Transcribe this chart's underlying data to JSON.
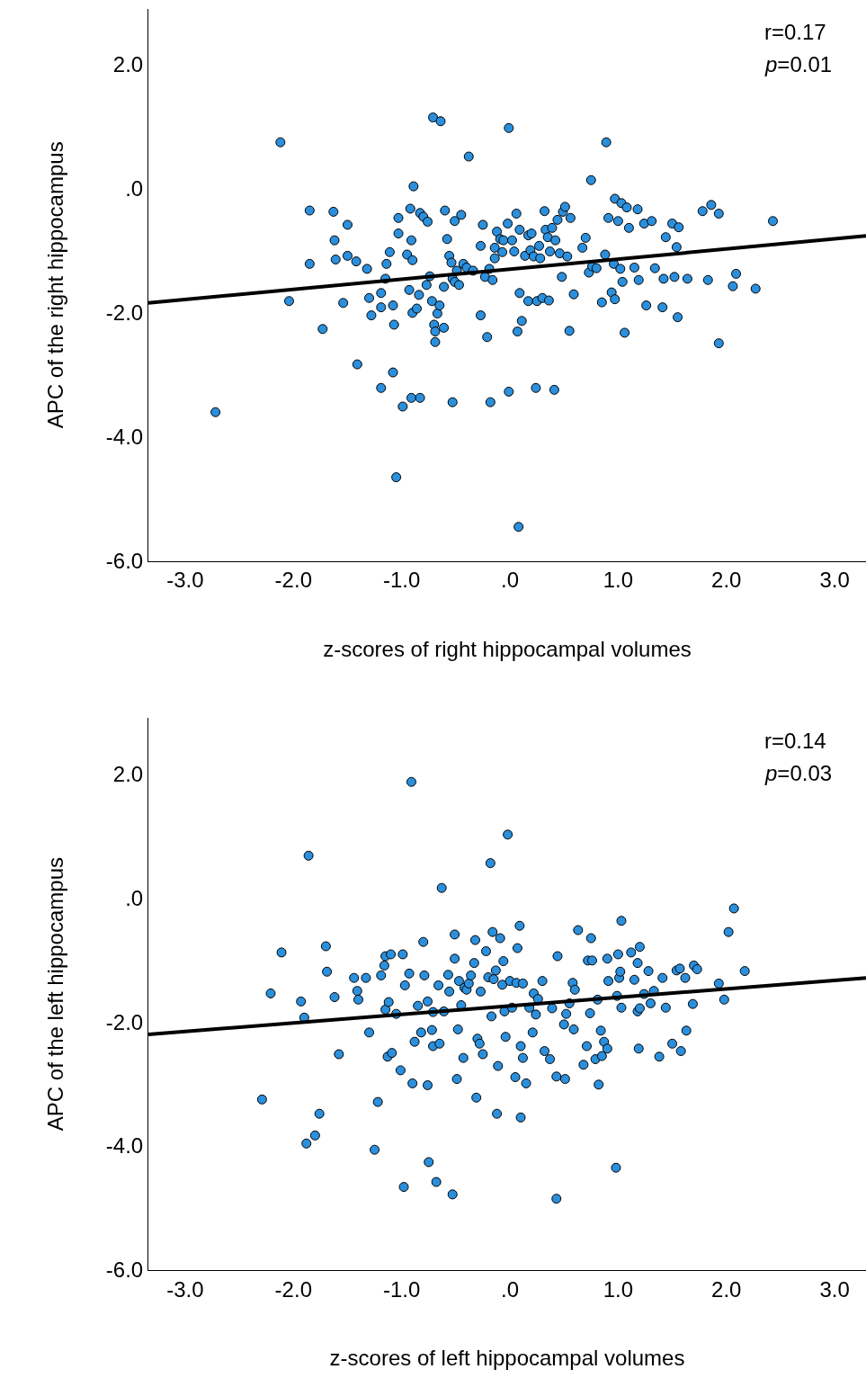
{
  "chart_data": [
    {
      "type": "scatter",
      "xlabel": "z-scores of right hippocampal volumes",
      "ylabel": "APC of the right hippocampus",
      "annotations": [
        "r=0.17",
        "p=0.01"
      ],
      "xlim": [
        -3.34,
        3.29
      ],
      "ylim": [
        -6.0,
        2.9
      ],
      "xticks": [
        {
          "value": -3,
          "label": "-3.0"
        },
        {
          "value": -2,
          "label": "-2.0"
        },
        {
          "value": -1,
          "label": "-1.0"
        },
        {
          "value": 0,
          "label": ".0"
        },
        {
          "value": 1,
          "label": "1.0"
        },
        {
          "value": 2,
          "label": "2.0"
        },
        {
          "value": 3,
          "label": "3.0"
        }
      ],
      "yticks": [
        {
          "value": -6,
          "label": "-6.0"
        },
        {
          "value": -4,
          "label": "-4.0"
        },
        {
          "value": -2,
          "label": "-2.0"
        },
        {
          "value": 0,
          "label": ".0"
        },
        {
          "value": 2,
          "label": "2.0"
        }
      ],
      "marker": "circle",
      "series": [
        {
          "color": "#2b8fdc",
          "x": [
            -2.12,
            -2.72,
            -2.04,
            -1.85,
            -1.85,
            -1.73,
            -1.63,
            -1.62,
            -1.61,
            -1.54,
            -1.5,
            -1.5,
            -1.42,
            -1.41,
            -1.32,
            -1.3,
            -1.28,
            -1.19,
            -1.19,
            -1.19,
            -1.15,
            -1.14,
            -1.11,
            -1.08,
            -1.08,
            -1.07,
            -1.05,
            -1.03,
            -1.03,
            -0.99,
            -0.95,
            -0.93,
            -0.92,
            -0.91,
            -0.9,
            -0.89,
            -0.91,
            -0.9,
            -0.86,
            -0.84,
            -0.83,
            -0.83,
            -0.8,
            -0.77,
            -0.76,
            -0.74,
            -0.72,
            -0.71,
            -0.7,
            -0.69,
            -0.69,
            -0.67,
            -0.65,
            -0.64,
            -0.61,
            -0.61,
            -0.6,
            -0.58,
            -0.56,
            -0.54,
            -0.53,
            -0.53,
            -0.51,
            -0.51,
            -0.49,
            -0.47,
            -0.45,
            -0.43,
            -0.4,
            -0.38,
            -0.34,
            -0.27,
            -0.27,
            -0.25,
            -0.23,
            -0.21,
            -0.19,
            -0.18,
            -0.16,
            -0.14,
            -0.14,
            -0.12,
            -0.09,
            -0.07,
            -0.06,
            -0.02,
            -0.01,
            -0.01,
            0.02,
            0.04,
            0.06,
            0.07,
            0.08,
            0.09,
            0.09,
            0.11,
            0.14,
            0.17,
            0.17,
            0.19,
            0.2,
            0.22,
            0.24,
            0.25,
            0.27,
            0.28,
            0.3,
            0.32,
            0.33,
            0.35,
            0.36,
            0.37,
            0.39,
            0.41,
            0.42,
            0.44,
            0.46,
            0.48,
            0.49,
            0.51,
            0.53,
            0.55,
            0.56,
            0.59,
            0.67,
            0.7,
            0.73,
            0.75,
            0.76,
            0.8,
            0.85,
            0.88,
            0.89,
            0.91,
            0.94,
            0.96,
            0.97,
            0.97,
            1.0,
            1.02,
            1.03,
            1.04,
            1.06,
            1.08,
            1.1,
            1.15,
            1.18,
            1.19,
            1.24,
            1.26,
            1.31,
            1.34,
            1.41,
            1.42,
            1.44,
            1.5,
            1.52,
            1.54,
            1.55,
            1.56,
            1.64,
            1.78,
            1.83,
            1.86,
            1.93,
            1.93,
            2.06,
            2.09,
            2.27,
            2.43
          ],
          "values": [
            0.75,
            -3.6,
            -1.81,
            -0.35,
            -1.21,
            -2.26,
            -0.37,
            -0.83,
            -1.14,
            -1.84,
            -0.58,
            -1.08,
            -1.17,
            -2.83,
            -1.29,
            -1.76,
            -2.04,
            -1.68,
            -1.91,
            -3.21,
            -1.45,
            -1.21,
            -1.02,
            -1.88,
            -2.96,
            -2.19,
            -4.65,
            -0.47,
            -0.72,
            -3.51,
            -1.06,
            -1.63,
            -0.32,
            -0.83,
            -1.15,
            0.04,
            -3.37,
            -2.0,
            -1.93,
            -1.71,
            -0.39,
            -3.37,
            -0.45,
            -1.55,
            -0.53,
            -1.41,
            -1.81,
            1.15,
            -2.19,
            -2.3,
            -2.47,
            -2.01,
            -1.88,
            1.09,
            -1.58,
            -2.24,
            -0.35,
            -0.81,
            -1.08,
            -1.19,
            -1.45,
            -3.44,
            -1.5,
            -0.52,
            -1.32,
            -1.55,
            -0.42,
            -1.21,
            -1.27,
            0.52,
            -1.32,
            -2.04,
            -0.92,
            -0.58,
            -1.42,
            -2.39,
            -1.29,
            -3.44,
            -1.47,
            -0.95,
            -1.12,
            -0.69,
            -0.81,
            -1.02,
            -0.83,
            -0.56,
            0.98,
            -3.27,
            -0.83,
            -1.01,
            -0.4,
            -2.3,
            -5.45,
            -0.66,
            -1.68,
            -2.13,
            -1.08,
            -0.75,
            -1.81,
            -0.99,
            -0.72,
            -1.09,
            -3.21,
            -1.81,
            -0.92,
            -1.12,
            -1.76,
            -0.36,
            -0.66,
            -0.78,
            -1.8,
            -1.01,
            -0.63,
            -3.24,
            -0.83,
            -0.5,
            -1.04,
            -1.42,
            -0.37,
            -0.29,
            -1.09,
            -2.29,
            -0.47,
            -1.7,
            -0.95,
            -0.79,
            -1.35,
            0.14,
            -1.25,
            -1.28,
            -1.83,
            -1.06,
            0.75,
            -0.47,
            -1.67,
            -1.21,
            -0.16,
            -1.78,
            -0.52,
            -1.29,
            -0.23,
            -1.5,
            -2.32,
            -0.3,
            -0.63,
            -1.27,
            -0.33,
            -1.47,
            -0.56,
            -1.88,
            -0.52,
            -1.28,
            -1.91,
            -1.45,
            -0.78,
            -0.56,
            -1.42,
            -0.94,
            -2.07,
            -0.62,
            -1.45,
            -0.36,
            -1.47,
            -0.26,
            -0.4,
            -2.49,
            -1.57,
            -1.37,
            -1.61,
            -0.52
          ]
        },
        {
          "type": "line",
          "marker": "none",
          "color": "#000000",
          "x": [
            -3.34,
            3.29
          ],
          "values": [
            -1.84,
            -0.76
          ]
        }
      ]
    },
    {
      "type": "scatter",
      "xlabel": "z-scores of left hippocampal volumes",
      "ylabel": "APC of the left hippocampus",
      "annotations": [
        "r=0.14",
        "p=0.03"
      ],
      "xlim": [
        -3.34,
        3.29
      ],
      "ylim": [
        -6.0,
        2.9
      ],
      "xticks": [
        {
          "value": -3,
          "label": "-3.0"
        },
        {
          "value": -2,
          "label": "-2.0"
        },
        {
          "value": -1,
          "label": "-1.0"
        },
        {
          "value": 0,
          "label": ".0"
        },
        {
          "value": 1,
          "label": "1.0"
        },
        {
          "value": 2,
          "label": "2.0"
        },
        {
          "value": 3,
          "label": "3.0"
        }
      ],
      "yticks": [
        {
          "value": -6,
          "label": "-6.0"
        },
        {
          "value": -4,
          "label": "-4.0"
        },
        {
          "value": -2,
          "label": "-2.0"
        },
        {
          "value": 0,
          "label": ".0"
        },
        {
          "value": 2,
          "label": "2.0"
        }
      ],
      "marker": "circle",
      "series": [
        {
          "color": "#2b8fdc",
          "x": [
            -2.21,
            -2.29,
            -2.11,
            -1.93,
            -1.9,
            -1.88,
            -1.86,
            -1.8,
            -1.76,
            -1.7,
            -1.69,
            -1.62,
            -1.58,
            -1.44,
            -1.41,
            -1.4,
            -1.33,
            -1.3,
            -1.25,
            -1.22,
            -1.19,
            -1.16,
            -1.15,
            -1.15,
            -1.13,
            -1.12,
            -1.1,
            -1.09,
            -1.05,
            -1.01,
            -0.99,
            -0.98,
            -0.97,
            -0.93,
            -0.91,
            -0.9,
            -0.88,
            -0.85,
            -0.82,
            -0.8,
            -0.79,
            -0.76,
            -0.76,
            -0.75,
            -0.72,
            -0.71,
            -0.71,
            -0.68,
            -0.66,
            -0.65,
            -0.63,
            -0.61,
            -0.57,
            -0.56,
            -0.53,
            -0.51,
            -0.51,
            -0.49,
            -0.48,
            -0.47,
            -0.45,
            -0.43,
            -0.42,
            -0.4,
            -0.38,
            -0.36,
            -0.33,
            -0.32,
            -0.31,
            -0.3,
            -0.28,
            -0.27,
            -0.25,
            -0.22,
            -0.2,
            -0.18,
            -0.17,
            -0.16,
            -0.15,
            -0.13,
            -0.12,
            -0.11,
            -0.09,
            -0.07,
            -0.06,
            -0.05,
            -0.04,
            -0.02,
            0.0,
            0.02,
            0.05,
            0.06,
            0.07,
            0.09,
            0.1,
            0.1,
            0.12,
            0.12,
            0.15,
            0.18,
            0.21,
            0.22,
            0.24,
            0.26,
            0.3,
            0.32,
            0.37,
            0.39,
            0.43,
            0.43,
            0.44,
            0.5,
            0.51,
            0.52,
            0.55,
            0.58,
            0.59,
            0.6,
            0.63,
            0.68,
            0.71,
            0.72,
            0.74,
            0.75,
            0.76,
            0.79,
            0.81,
            0.82,
            0.84,
            0.85,
            0.87,
            0.9,
            0.9,
            0.91,
            0.98,
            0.99,
            1.0,
            1.01,
            1.02,
            1.03,
            1.03,
            1.12,
            1.15,
            1.18,
            1.18,
            1.19,
            1.2,
            1.2,
            1.24,
            1.28,
            1.3,
            1.33,
            1.38,
            1.41,
            1.44,
            1.5,
            1.54,
            1.57,
            1.58,
            1.63,
            1.62,
            1.69,
            1.7,
            1.73,
            1.93,
            1.98,
            2.02,
            2.07,
            2.17
          ],
          "values": [
            -1.54,
            -3.25,
            -0.88,
            -1.67,
            -1.93,
            -3.96,
            0.68,
            -3.83,
            -3.48,
            -0.78,
            -1.19,
            -1.6,
            -2.52,
            -1.29,
            -1.5,
            -1.64,
            -1.29,
            -2.17,
            -4.06,
            -3.29,
            -1.25,
            -1.09,
            -0.94,
            -1.8,
            -2.56,
            -1.68,
            -0.91,
            -2.5,
            -1.87,
            -2.78,
            -0.91,
            -4.66,
            -1.41,
            -1.22,
            1.87,
            -2.99,
            -2.32,
            -1.74,
            -2.17,
            -0.71,
            -1.25,
            -1.67,
            -3.02,
            -4.26,
            -2.13,
            -1.84,
            -2.39,
            -4.58,
            -1.41,
            -2.35,
            0.16,
            -1.83,
            -1.24,
            -1.51,
            -4.78,
            -0.59,
            -0.98,
            -2.92,
            -2.12,
            -1.34,
            -1.73,
            -2.58,
            -1.45,
            -1.48,
            -1.38,
            -1.25,
            -1.05,
            -0.68,
            -3.22,
            -2.27,
            -2.35,
            -1.51,
            -2.52,
            -0.86,
            -1.28,
            0.56,
            -1.91,
            -0.55,
            -1.31,
            -1.17,
            -3.48,
            -2.71,
            -0.65,
            -1.4,
            -1.02,
            -1.83,
            -2.24,
            1.02,
            -1.34,
            -1.77,
            -2.89,
            -1.37,
            -0.81,
            -0.45,
            -2.39,
            -3.54,
            -2.58,
            -1.38,
            -2.99,
            -1.77,
            -2.17,
            -1.54,
            -1.88,
            -1.63,
            -1.34,
            -2.47,
            -2.6,
            -1.78,
            -2.88,
            -4.85,
            -0.94,
            -2.04,
            -2.92,
            -1.87,
            -1.7,
            -1.37,
            -2.12,
            -1.48,
            -0.52,
            -2.69,
            -2.39,
            -1.01,
            -1.86,
            -0.65,
            -1.01,
            -2.6,
            -1.64,
            -3.01,
            -2.14,
            -2.55,
            -2.32,
            -2.43,
            -0.98,
            -1.34,
            -4.35,
            -1.58,
            -0.91,
            -1.29,
            -1.19,
            -0.37,
            -1.77,
            -0.88,
            -1.32,
            -1.05,
            -1.83,
            -2.43,
            -0.79,
            -1.78,
            -1.55,
            -1.18,
            -1.7,
            -1.5,
            -2.56,
            -1.29,
            -1.77,
            -2.35,
            -1.17,
            -1.14,
            -2.47,
            -2.14,
            -1.29,
            -1.71,
            -1.09,
            -1.15,
            -1.38,
            -1.64,
            -0.55,
            -0.17,
            -1.18
          ]
        },
        {
          "type": "line",
          "marker": "none",
          "color": "#000000",
          "x": [
            -3.34,
            3.29
          ],
          "values": [
            -2.2,
            -1.29
          ]
        }
      ]
    }
  ]
}
